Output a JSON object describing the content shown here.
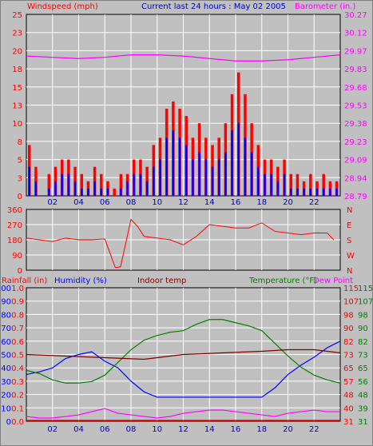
{
  "header": {
    "wind_title": "Windspeed (mph)",
    "center_title": "Current last 24 hours : May 02 2005",
    "baro_title": "Barometer (in.)"
  },
  "bottom_header": {
    "rain": "Rainfall (in)",
    "humidity": "Humidity (%)",
    "indoor": "Indoor temp",
    "temperature": "Temperature (°F)",
    "dewpoint": "Dew Point"
  },
  "x_ticks": [
    "02",
    "04",
    "06",
    "08",
    "10",
    "12",
    "14",
    "16",
    "18",
    "20",
    "22"
  ],
  "colors": {
    "wind_gust": "#ff0000",
    "wind_avg": "#0000ff",
    "barometer": "#ff00ff",
    "direction": "#ff0000",
    "humidity": "#0000ff",
    "temperature": "#008000",
    "indoor": "#800000",
    "dewpoint": "#ff00ff",
    "rain": "#ff0000",
    "axis_red": "#ff0000",
    "axis_blue": "#0000ff",
    "axis_green": "#008000"
  },
  "chart_data": [
    {
      "type": "bar",
      "title": "Current last 24 hours : May 02 2005",
      "ylabel": "Windspeed (mph)",
      "ylim": [
        0,
        25
      ],
      "left_ticks": [
        "0",
        "3",
        "5",
        "8",
        "10",
        "13",
        "15",
        "18",
        "20",
        "23",
        "25"
      ],
      "right_ticks": [
        "28.79",
        "28.94",
        "29.09",
        "29.23",
        "29.38",
        "29.53",
        "29.68",
        "29.83",
        "29.97",
        "30.12",
        "30.27"
      ],
      "series": [
        {
          "name": "Windspeed (mph)",
          "x": [
            0,
            0.5,
            1,
            1.5,
            2,
            2.5,
            3,
            3.5,
            4,
            4.5,
            5,
            5.5,
            6,
            6.5,
            7,
            7.5,
            8,
            8.5,
            9,
            9.5,
            10,
            10.5,
            11,
            11.5,
            12,
            12.5,
            13,
            13.5,
            14,
            14.5,
            15,
            15.5,
            16,
            16.5,
            17,
            17.5,
            18,
            18.5,
            19,
            19.5,
            20,
            20.5,
            21,
            21.5,
            22,
            22.5,
            23,
            23.5
          ],
          "gust": [
            7,
            4,
            0,
            3,
            4,
            5,
            5,
            4,
            3,
            2,
            4,
            3,
            2,
            1,
            3,
            3,
            5,
            5,
            4,
            7,
            8,
            12,
            13,
            12,
            11,
            8,
            10,
            8,
            7,
            8,
            10,
            14,
            17,
            14,
            10,
            7,
            5,
            5,
            4,
            5,
            3,
            3,
            2,
            3,
            2,
            3,
            2,
            2
          ],
          "avg": [
            4,
            2,
            0,
            1,
            2,
            3,
            3,
            2,
            1,
            1,
            2,
            1,
            1,
            0,
            1,
            2,
            3,
            3,
            2,
            4,
            5,
            8,
            9,
            8,
            7,
            5,
            6,
            5,
            4,
            5,
            6,
            9,
            10,
            8,
            6,
            4,
            3,
            3,
            2,
            3,
            1,
            1,
            1,
            1,
            1,
            1,
            1,
            1
          ]
        },
        {
          "name": "Barometer (in.)",
          "x": [
            0,
            2,
            4,
            6,
            8,
            10,
            12,
            14,
            16,
            18,
            20,
            22,
            24
          ],
          "values": [
            29.93,
            29.92,
            29.91,
            29.92,
            29.94,
            29.94,
            29.93,
            29.91,
            29.89,
            29.89,
            29.9,
            29.92,
            29.94
          ]
        }
      ]
    },
    {
      "type": "line",
      "left_ticks": [
        "0",
        "90",
        "180",
        "270",
        "360"
      ],
      "right_ticks": [
        "N",
        "W",
        "S",
        "E",
        "N"
      ],
      "series": [
        {
          "name": "Wind direction",
          "x": [
            0,
            1,
            2,
            3,
            4,
            5,
            6,
            6.8,
            7.2,
            8,
            8.5,
            9,
            10,
            11,
            12,
            13,
            14,
            15,
            16,
            17,
            18,
            19,
            20,
            21,
            22,
            23,
            23.5
          ],
          "values": [
            190,
            180,
            170,
            190,
            180,
            180,
            185,
            15,
            20,
            300,
            260,
            200,
            190,
            180,
            150,
            200,
            270,
            260,
            250,
            250,
            280,
            230,
            220,
            210,
            220,
            220,
            180
          ]
        }
      ]
    },
    {
      "type": "line",
      "left_ticks": [
        "0",
        "10",
        "20",
        "30",
        "40",
        "50",
        "60",
        "70",
        "80",
        "90",
        "100"
      ],
      "rain_ticks": [
        "0.0",
        "0.1",
        "0.2",
        "0.3",
        "0.4",
        "0.5",
        "0.6",
        "0.7",
        "0.8",
        "0.9",
        "1.0"
      ],
      "temp_ticks": [
        "31",
        "40",
        "48",
        "57",
        "65",
        "73",
        "82",
        "90",
        "98",
        "107",
        "115"
      ],
      "temp_ticks2": [
        "31",
        "39",
        "48",
        "56",
        "65",
        "73",
        "82",
        "90",
        "98",
        "107",
        "115"
      ],
      "series": [
        {
          "name": "Humidity (%)",
          "x": [
            0,
            1,
            2,
            3,
            4,
            5,
            6,
            7,
            8,
            9,
            10,
            11,
            12,
            13,
            14,
            15,
            16,
            17,
            18,
            19,
            20,
            21,
            22,
            23,
            24
          ],
          "values": [
            35,
            37,
            40,
            47,
            50,
            52,
            45,
            40,
            30,
            22,
            18,
            18,
            18,
            18,
            18,
            18,
            18,
            18,
            18,
            25,
            35,
            42,
            48,
            55,
            60
          ]
        },
        {
          "name": "Temperature (°F)",
          "x": [
            0,
            1,
            2,
            3,
            4,
            5,
            6,
            7,
            8,
            9,
            10,
            11,
            12,
            13,
            14,
            15,
            16,
            17,
            18,
            19,
            20,
            21,
            22,
            23,
            24
          ],
          "values": [
            63,
            61,
            57,
            55,
            55,
            56,
            60,
            68,
            76,
            82,
            85,
            87,
            88,
            92,
            95,
            95,
            93,
            91,
            88,
            80,
            72,
            65,
            60,
            57,
            55
          ]
        },
        {
          "name": "Indoor temp",
          "x": [
            0,
            3,
            6,
            9,
            12,
            15,
            18,
            20,
            22,
            24
          ],
          "values": [
            73,
            72,
            71,
            70,
            73,
            74,
            75,
            76,
            76,
            74
          ]
        },
        {
          "name": "Dew Point",
          "x": [
            0,
            1,
            2,
            3,
            4,
            5,
            6,
            7,
            8,
            9,
            10,
            11,
            12,
            13,
            14,
            15,
            16,
            17,
            18,
            19,
            20,
            21,
            22,
            23,
            24
          ],
          "values": [
            34,
            33,
            33,
            34,
            35,
            37,
            39,
            36,
            35,
            34,
            33,
            34,
            36,
            37,
            38,
            38,
            37,
            36,
            35,
            34,
            36,
            37,
            38,
            37,
            37
          ]
        },
        {
          "name": "Rainfall (in)",
          "x": [
            0,
            24
          ],
          "values": [
            0,
            0
          ]
        }
      ]
    }
  ]
}
